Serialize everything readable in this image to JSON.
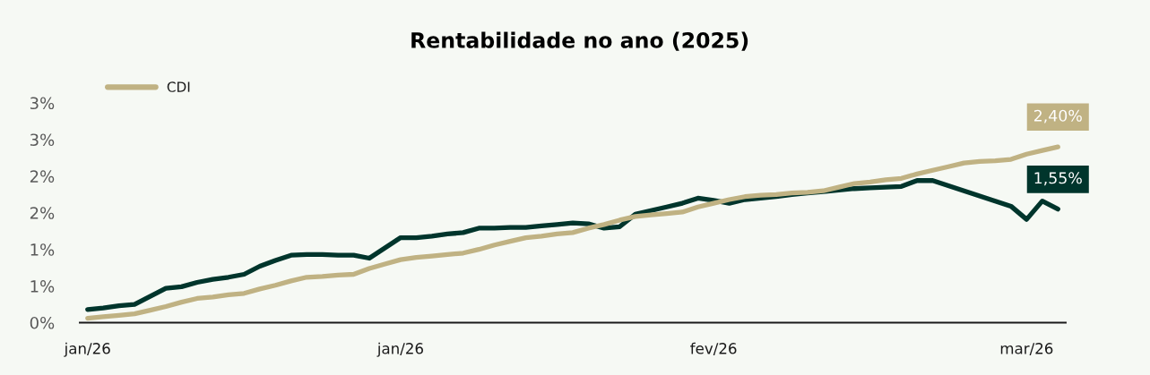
{
  "chart_data": {
    "type": "line",
    "title": "Rentabilidade no ano (2025)",
    "legend": "top left",
    "categories": [
      "jan/26",
      null,
      null,
      null,
      null,
      null,
      null,
      null,
      null,
      null,
      null,
      null,
      null,
      null,
      null,
      null,
      null,
      null,
      null,
      null,
      "jan/26",
      null,
      null,
      null,
      null,
      null,
      null,
      null,
      null,
      null,
      null,
      null,
      null,
      null,
      null,
      null,
      null,
      null,
      null,
      null,
      "fev/26",
      null,
      null,
      null,
      null,
      null,
      null,
      null,
      null,
      null,
      null,
      null,
      null,
      null,
      null,
      null,
      null,
      null,
      null,
      null,
      "mar/26",
      null,
      null
    ],
    "ylim": [
      0,
      3
    ],
    "yticks": [
      {
        "value": 0,
        "label": "0%"
      },
      {
        "value": 0.5,
        "label": "1%"
      },
      {
        "value": 1,
        "label": "1%"
      },
      {
        "value": 1.5,
        "label": "2%"
      },
      {
        "value": 2,
        "label": "2%"
      },
      {
        "value": 2.5,
        "label": "3%"
      },
      {
        "value": 3,
        "label": "3%"
      }
    ],
    "series": [
      {
        "color": "#00352c",
        "values": [
          0.18,
          0.2,
          0.23,
          0.25,
          0.36,
          0.47,
          0.49,
          0.55,
          0.59,
          0.62,
          0.66,
          0.77,
          0.85,
          0.92,
          0.93,
          0.93,
          0.92,
          0.92,
          0.88,
          1.02,
          1.16,
          1.16,
          1.18,
          1.21,
          1.23,
          1.29,
          1.29,
          1.3,
          1.3,
          1.32,
          1.34,
          1.36,
          1.35,
          1.29,
          1.31,
          1.48,
          1.53,
          1.58,
          1.63,
          1.7,
          1.67,
          1.63,
          1.68,
          1.7,
          1.72,
          1.75,
          1.77,
          1.79,
          1.81,
          1.83,
          1.84,
          1.85,
          1.86,
          1.94,
          1.94,
          1.87,
          1.8,
          1.73,
          1.66,
          1.59,
          1.41,
          1.66,
          1.55
        ],
        "value_labels": [
          null,
          null,
          null,
          null,
          null,
          null,
          null,
          null,
          null,
          null,
          null,
          null,
          null,
          null,
          null,
          null,
          null,
          null,
          null,
          null,
          null,
          null,
          null,
          null,
          null,
          null,
          null,
          null,
          null,
          null,
          null,
          null,
          null,
          null,
          null,
          null,
          null,
          null,
          null,
          null,
          null,
          null,
          null,
          null,
          null,
          null,
          null,
          null,
          null,
          null,
          null,
          null,
          null,
          null,
          null,
          null,
          null,
          null,
          null,
          null,
          null,
          null,
          "1,55%"
        ]
      },
      {
        "name": "CDI",
        "color": "#c0b283",
        "values": [
          0.06,
          0.08,
          0.1,
          0.12,
          0.17,
          0.22,
          0.28,
          0.33,
          0.35,
          0.38,
          0.4,
          0.46,
          0.51,
          0.57,
          0.62,
          0.63,
          0.65,
          0.66,
          0.74,
          0.8,
          0.86,
          0.89,
          0.91,
          0.93,
          0.95,
          1.0,
          1.06,
          1.11,
          1.16,
          1.18,
          1.21,
          1.23,
          1.29,
          1.34,
          1.4,
          1.45,
          1.47,
          1.49,
          1.51,
          1.58,
          1.63,
          1.68,
          1.72,
          1.74,
          1.75,
          1.77,
          1.78,
          1.8,
          1.85,
          1.9,
          1.92,
          1.95,
          1.97,
          2.03,
          2.08,
          2.13,
          2.18,
          2.2,
          2.21,
          2.23,
          2.3,
          2.35,
          2.4
        ],
        "value_labels": [
          null,
          null,
          null,
          null,
          null,
          null,
          null,
          null,
          null,
          null,
          null,
          null,
          null,
          null,
          null,
          null,
          null,
          null,
          null,
          null,
          null,
          null,
          null,
          null,
          null,
          null,
          null,
          null,
          null,
          null,
          null,
          null,
          null,
          null,
          null,
          null,
          null,
          null,
          null,
          null,
          null,
          null,
          null,
          null,
          null,
          null,
          null,
          null,
          null,
          null,
          null,
          null,
          null,
          null,
          null,
          null,
          null,
          null,
          null,
          null,
          null,
          null,
          "2,40%"
        ]
      }
    ]
  }
}
